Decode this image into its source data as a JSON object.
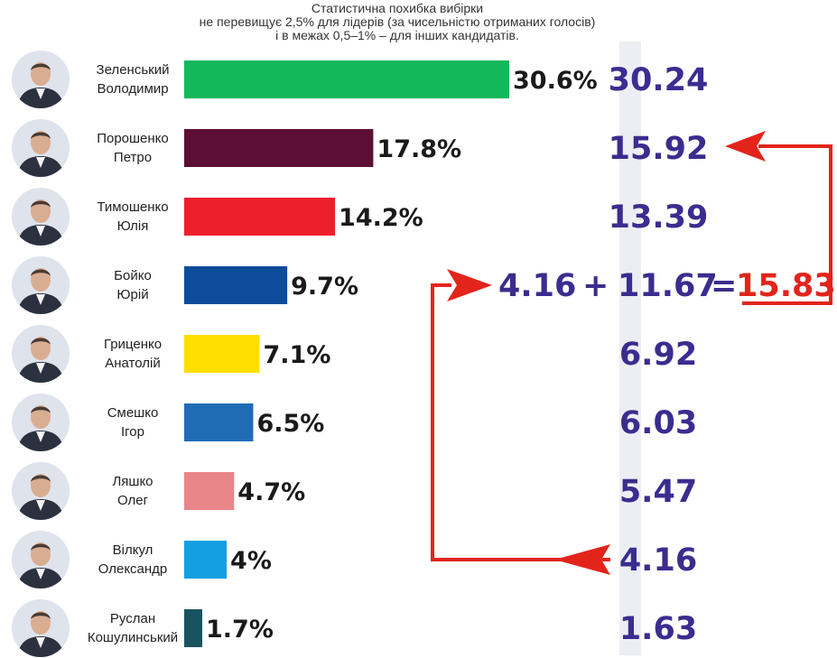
{
  "note": {
    "line1": "Статистична  похибка вибірки",
    "line2": "не перевищує  2,5% для лідерів (за чисельністю отриманих голосів)",
    "line3": "і в межах 0,5–1% – для інших кандидатів."
  },
  "equation": {
    "term1": "4.16",
    "plus": "+",
    "term2": "11.67",
    "equals": "=",
    "total": "15.83"
  },
  "colors": {
    "result_text": "#3a2d8f",
    "arrow": "#e3241b"
  },
  "chart_data": {
    "type": "bar",
    "orientation": "horizontal",
    "categories": [
      "Зеленський Володимир",
      "Порошенко Петро",
      "Тимошенко Юлія",
      "Бойко Юрій",
      "Гриценко Анатолій",
      "Смешко Ігор",
      "Ляшко Олег",
      "Вілкул Олександр",
      "Руслан Кошулинський"
    ],
    "candidates": [
      {
        "first": "Зеленський",
        "second": "Володимир",
        "value": 30.6,
        "label": "30.6%",
        "result": "30.24",
        "color": "#13b85b"
      },
      {
        "first": "Порошенко",
        "second": "Петро",
        "value": 17.8,
        "label": "17.8%",
        "result": "15.92",
        "color": "#5c0e34"
      },
      {
        "first": "Тимошенко",
        "second": "Юлія",
        "value": 14.2,
        "label": "14.2%",
        "result": "13.39",
        "color": "#ee1f2d"
      },
      {
        "first": "Бойко",
        "second": "Юрій",
        "value": 9.7,
        "label": "9.7%",
        "result": "11.67",
        "color": "#0d4c9b"
      },
      {
        "first": "Гриценко",
        "second": "Анатолій",
        "value": 7.1,
        "label": "7.1%",
        "result": "6.92",
        "color": "#ffde00"
      },
      {
        "first": "Смешко",
        "second": "Ігор",
        "value": 6.5,
        "label": "6.5%",
        "result": "6.03",
        "color": "#1f6cb5"
      },
      {
        "first": "Ляшко",
        "second": "Олег",
        "value": 4.7,
        "label": "4.7%",
        "result": "5.47",
        "color": "#e88689"
      },
      {
        "first": "Вілкул",
        "second": "Олександр",
        "value": 4.0,
        "label": "4%",
        "result": "4.16",
        "color": "#139fe1"
      },
      {
        "first": "Руслан",
        "second": "Кошулинський",
        "value": 1.7,
        "label": "1.7%",
        "result": "1.63",
        "color": "#1a5360"
      }
    ],
    "values": [
      30.6,
      17.8,
      14.2,
      9.7,
      7.1,
      6.5,
      4.7,
      4.0,
      1.7
    ],
    "results": [
      30.24,
      15.92,
      13.39,
      11.67,
      6.92,
      6.03,
      5.47,
      4.16,
      1.63
    ],
    "title": "",
    "xlabel": "",
    "ylabel": "",
    "xlim": [
      0,
      30.6
    ],
    "grid": false,
    "legend": "none"
  }
}
